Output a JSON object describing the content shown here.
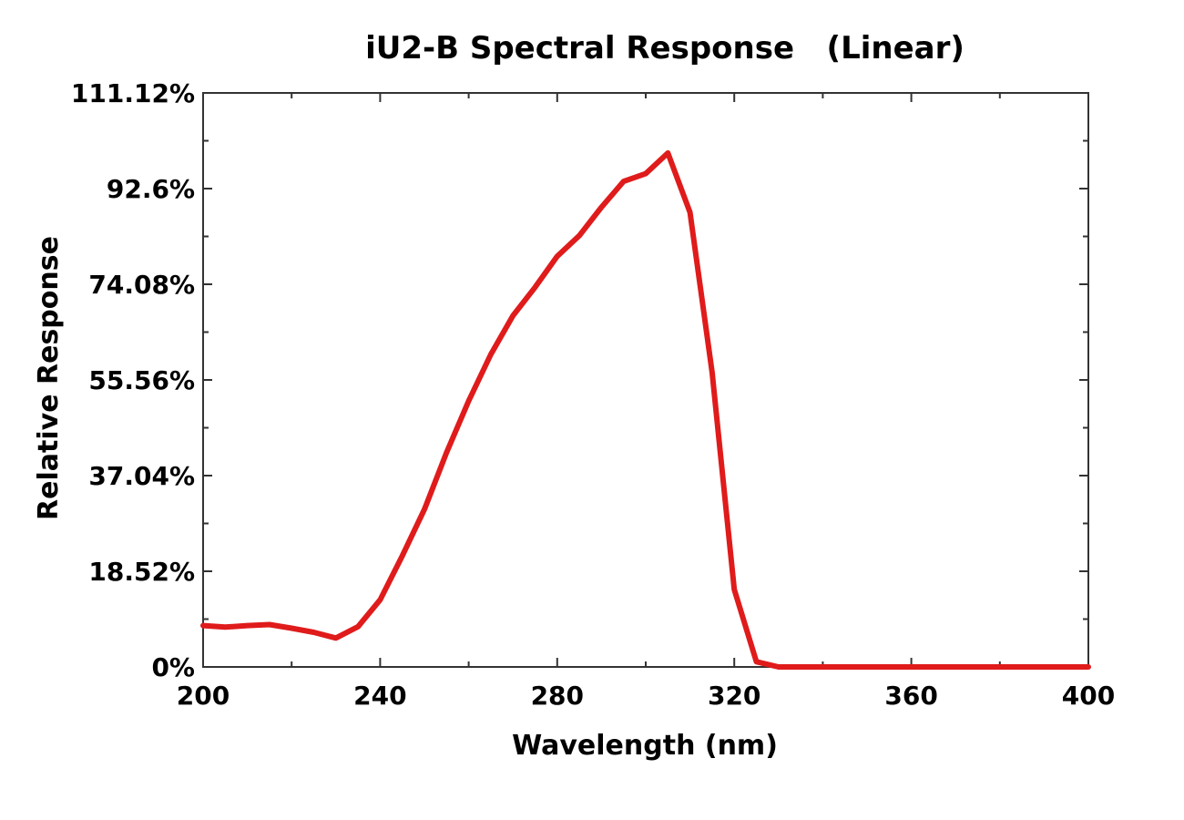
{
  "chart_data": {
    "type": "line",
    "title": "iU2-B Spectral Response   (Linear)",
    "xlabel": "Wavelength (nm)",
    "ylabel": "Relative Response",
    "xlim": [
      200,
      400
    ],
    "ylim": [
      0,
      111.12
    ],
    "x_ticks": [
      200,
      240,
      280,
      320,
      360,
      400
    ],
    "x_tick_labels": [
      "200",
      "240",
      "280",
      "320",
      "360",
      "400"
    ],
    "y_ticks": [
      0,
      18.52,
      37.04,
      55.56,
      74.08,
      92.6,
      111.12
    ],
    "y_tick_labels": [
      "0%",
      "18.52%",
      "37.04%",
      "55.56%",
      "74.08%",
      "92.6%",
      "111.12%"
    ],
    "grid": false,
    "series": [
      {
        "name": "iU2-B",
        "color": "#e01b1b",
        "x": [
          200,
          205,
          210,
          215,
          220,
          225,
          230,
          235,
          240,
          245,
          250,
          255,
          260,
          265,
          270,
          275,
          280,
          285,
          290,
          295,
          300,
          305,
          310,
          315,
          320,
          325,
          330,
          340,
          360,
          380,
          400
        ],
        "values": [
          8.0,
          7.7,
          8.0,
          8.2,
          7.5,
          6.7,
          5.6,
          7.8,
          13.0,
          21.5,
          30.5,
          41.5,
          51.5,
          60.5,
          68.0,
          73.5,
          79.5,
          83.5,
          89.0,
          94.0,
          95.5,
          99.5,
          88.0,
          57.0,
          15.0,
          1.0,
          0.0,
          0.0,
          0.0,
          0.0,
          0.0
        ]
      }
    ]
  }
}
